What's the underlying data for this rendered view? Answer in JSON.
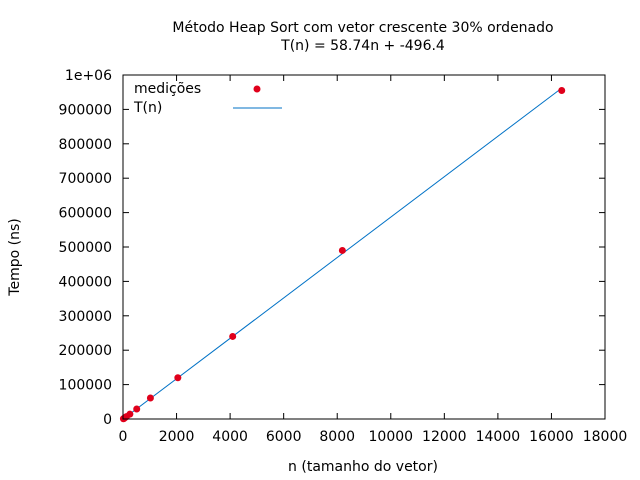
{
  "chart_data": {
    "type": "scatter",
    "title": "Método Heap Sort com vetor crescente 30% ordenado",
    "subtitle": "T(n) = 58.74n + -496.4",
    "xlabel": "n (tamanho do vetor)",
    "ylabel": "Tempo (ns)",
    "xlim": [
      0,
      18000
    ],
    "ylim": [
      0,
      1000000
    ],
    "x_ticks": [
      0,
      2000,
      4000,
      6000,
      8000,
      10000,
      12000,
      14000,
      16000,
      18000
    ],
    "x_tick_labels": [
      "0",
      "2000",
      "4000",
      "6000",
      "8000",
      "10000",
      "12000",
      "14000",
      "16000",
      "18000"
    ],
    "y_ticks": [
      0,
      100000,
      200000,
      300000,
      400000,
      500000,
      600000,
      700000,
      800000,
      900000,
      1000000
    ],
    "y_tick_labels": [
      "0",
      "100000",
      "200000",
      "300000",
      "400000",
      "500000",
      "600000",
      "700000",
      "800000",
      "900000",
      "1e+06"
    ],
    "legend_position": "top-left",
    "series": [
      {
        "name": "medições",
        "kind": "points",
        "color": "#e0001b",
        "x": [
          16,
          32,
          64,
          128,
          256,
          512,
          1024,
          2048,
          4096,
          8192,
          16384
        ],
        "y": [
          800,
          1500,
          3200,
          6800,
          14000,
          29000,
          61000,
          120000,
          240000,
          490000,
          955000
        ]
      },
      {
        "name": "T(n)",
        "kind": "line",
        "color": "#0072c6",
        "slope": 58.74,
        "intercept": -496.4,
        "x_range": [
          0,
          16384
        ]
      }
    ]
  }
}
